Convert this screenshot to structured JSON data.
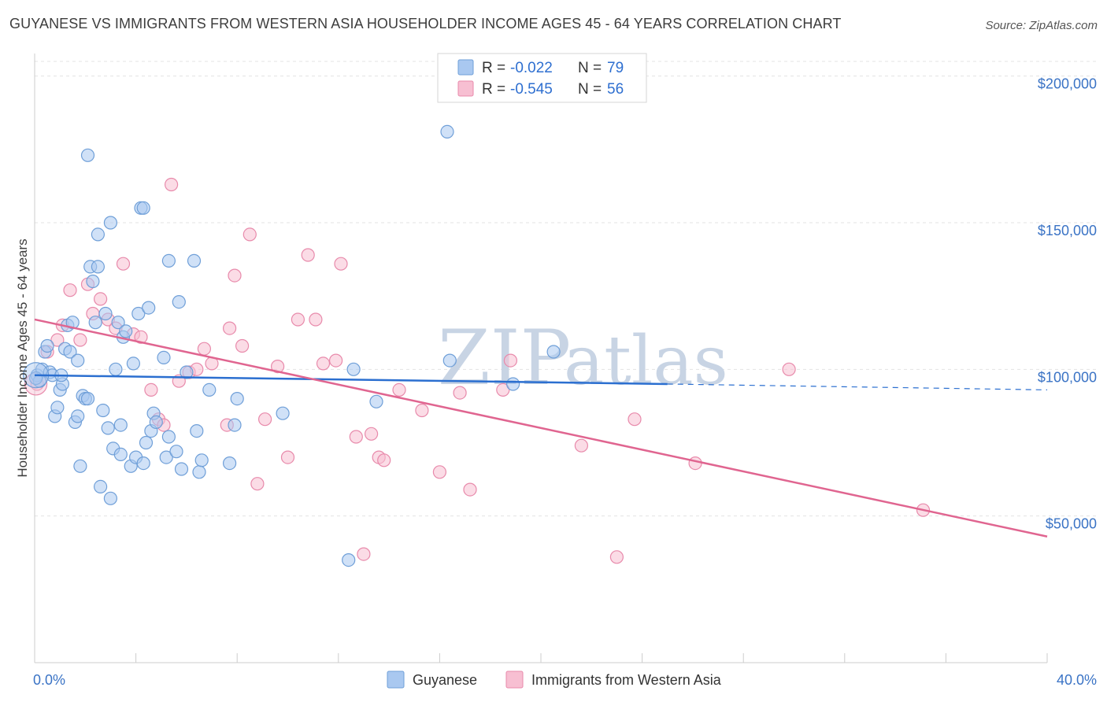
{
  "header": {
    "title": "GUYANESE VS IMMIGRANTS FROM WESTERN ASIA HOUSEHOLDER INCOME AGES 45 - 64 YEARS CORRELATION CHART",
    "source": "Source: ZipAtlas.com"
  },
  "watermark": {
    "zip": "ZIP",
    "atlas": "atlas"
  },
  "legend": {
    "rows": [
      {
        "r_label": "R =",
        "r_value": "-0.022",
        "n_label": "N =",
        "n_value": "79",
        "color": "#a9c8f0",
        "stroke": "#6f9fd8"
      },
      {
        "r_label": "R =",
        "r_value": "-0.545",
        "n_label": "N =",
        "n_value": "56",
        "color": "#f7bfd2",
        "stroke": "#e88aab"
      }
    ]
  },
  "bottom_legend": {
    "items": [
      {
        "label": "Guyanese",
        "color": "#a9c8f0",
        "stroke": "#6f9fd8"
      },
      {
        "label": "Immigrants from Western Asia",
        "color": "#f7bfd2",
        "stroke": "#e88aab"
      }
    ]
  },
  "chart_data": {
    "type": "scatter",
    "title": "GUYANESE VS IMMIGRANTS FROM WESTERN ASIA HOUSEHOLDER INCOME AGES 45 - 64 YEARS CORRELATION CHART",
    "xlabel": "",
    "ylabel": "Householder Income Ages 45 - 64 years",
    "xlim": [
      0,
      40
    ],
    "ylim": [
      0,
      205000
    ],
    "x_tick_labels": [
      "0.0%",
      "40.0%"
    ],
    "y_ticks": [
      50000,
      100000,
      150000,
      200000
    ],
    "y_tick_labels": [
      "$50,000",
      "$100,000",
      "$150,000",
      "$200,000"
    ],
    "grid": true,
    "legend_position": "top-center",
    "series": [
      {
        "name": "Guyanese",
        "color": "#a9c8f0",
        "stroke": "#6f9fd8",
        "trend": {
          "x": [
            0,
            25
          ],
          "y": [
            98000,
            95000
          ],
          "dashed_to": [
            40,
            93000
          ],
          "color": "#2b6fd0"
        },
        "points": [
          [
            0.1,
            98000
          ],
          [
            0.2,
            96000
          ],
          [
            0.3,
            100000
          ],
          [
            0.4,
            106000
          ],
          [
            0.5,
            108000
          ],
          [
            0.6,
            99000
          ],
          [
            0.7,
            98000
          ],
          [
            0.8,
            84000
          ],
          [
            0.9,
            87000
          ],
          [
            1.0,
            93000
          ],
          [
            1.1,
            95000
          ],
          [
            1.2,
            107000
          ],
          [
            1.3,
            115000
          ],
          [
            1.4,
            106000
          ],
          [
            1.5,
            116000
          ],
          [
            1.6,
            82000
          ],
          [
            1.7,
            103000
          ],
          [
            1.7,
            84000
          ],
          [
            1.8,
            67000
          ],
          [
            1.9,
            91000
          ],
          [
            2.0,
            90000
          ],
          [
            2.1,
            90000
          ],
          [
            2.1,
            173000
          ],
          [
            2.2,
            135000
          ],
          [
            2.3,
            130000
          ],
          [
            2.4,
            116000
          ],
          [
            2.5,
            135000
          ],
          [
            2.5,
            146000
          ],
          [
            2.6,
            60000
          ],
          [
            2.7,
            86000
          ],
          [
            2.8,
            119000
          ],
          [
            2.9,
            80000
          ],
          [
            3.0,
            56000
          ],
          [
            3.0,
            150000
          ],
          [
            3.1,
            73000
          ],
          [
            3.2,
            100000
          ],
          [
            3.3,
            116000
          ],
          [
            3.4,
            81000
          ],
          [
            3.4,
            71000
          ],
          [
            3.5,
            111000
          ],
          [
            3.6,
            113000
          ],
          [
            3.8,
            67000
          ],
          [
            3.9,
            102000
          ],
          [
            4.0,
            70000
          ],
          [
            4.1,
            119000
          ],
          [
            4.2,
            155000
          ],
          [
            4.3,
            155000
          ],
          [
            4.3,
            68000
          ],
          [
            4.4,
            75000
          ],
          [
            4.5,
            121000
          ],
          [
            4.6,
            79000
          ],
          [
            4.7,
            85000
          ],
          [
            4.8,
            82000
          ],
          [
            5.1,
            104000
          ],
          [
            5.2,
            70000
          ],
          [
            5.3,
            77000
          ],
          [
            5.3,
            137000
          ],
          [
            5.6,
            72000
          ],
          [
            5.7,
            123000
          ],
          [
            5.8,
            66000
          ],
          [
            6.0,
            99000
          ],
          [
            6.3,
            137000
          ],
          [
            6.4,
            79000
          ],
          [
            6.5,
            65000
          ],
          [
            6.6,
            69000
          ],
          [
            6.9,
            93000
          ],
          [
            7.7,
            68000
          ],
          [
            7.9,
            81000
          ],
          [
            8.0,
            90000
          ],
          [
            9.8,
            85000
          ],
          [
            12.4,
            35000
          ],
          [
            12.6,
            100000
          ],
          [
            13.5,
            89000
          ],
          [
            16.3,
            181000
          ],
          [
            16.4,
            103000
          ],
          [
            18.9,
            95000
          ],
          [
            20.5,
            106000
          ],
          [
            0.05,
            97000
          ],
          [
            1.05,
            98000
          ]
        ]
      },
      {
        "name": "Immigrants from Western Asia",
        "color": "#f7bfd2",
        "stroke": "#e88aab",
        "trend": {
          "x": [
            0,
            40
          ],
          "y": [
            117000,
            43000
          ],
          "color": "#e06590"
        },
        "points": [
          [
            0.1,
            95000
          ],
          [
            0.5,
            106000
          ],
          [
            0.9,
            110000
          ],
          [
            1.1,
            115000
          ],
          [
            1.4,
            127000
          ],
          [
            1.8,
            110000
          ],
          [
            2.1,
            129000
          ],
          [
            2.3,
            119000
          ],
          [
            2.6,
            124000
          ],
          [
            2.9,
            117000
          ],
          [
            3.2,
            114000
          ],
          [
            3.5,
            136000
          ],
          [
            3.9,
            112000
          ],
          [
            4.2,
            111000
          ],
          [
            4.6,
            93000
          ],
          [
            4.9,
            83000
          ],
          [
            5.1,
            81000
          ],
          [
            5.4,
            163000
          ],
          [
            5.7,
            96000
          ],
          [
            6.1,
            99000
          ],
          [
            6.4,
            100000
          ],
          [
            6.7,
            107000
          ],
          [
            7.0,
            102000
          ],
          [
            7.6,
            81000
          ],
          [
            7.7,
            114000
          ],
          [
            7.9,
            132000
          ],
          [
            8.2,
            108000
          ],
          [
            8.5,
            146000
          ],
          [
            8.8,
            61000
          ],
          [
            9.1,
            83000
          ],
          [
            9.6,
            101000
          ],
          [
            10.0,
            70000
          ],
          [
            10.4,
            117000
          ],
          [
            10.8,
            139000
          ],
          [
            11.1,
            117000
          ],
          [
            11.4,
            102000
          ],
          [
            11.9,
            103000
          ],
          [
            12.1,
            136000
          ],
          [
            12.7,
            77000
          ],
          [
            13.0,
            37000
          ],
          [
            13.3,
            78000
          ],
          [
            13.6,
            70000
          ],
          [
            13.8,
            69000
          ],
          [
            14.4,
            93000
          ],
          [
            15.3,
            86000
          ],
          [
            16.0,
            65000
          ],
          [
            16.8,
            92000
          ],
          [
            17.2,
            59000
          ],
          [
            18.5,
            93000
          ],
          [
            18.8,
            103000
          ],
          [
            21.6,
            74000
          ],
          [
            23.0,
            36000
          ],
          [
            23.7,
            83000
          ],
          [
            26.1,
            68000
          ],
          [
            29.8,
            100000
          ],
          [
            35.1,
            52000
          ]
        ]
      }
    ]
  }
}
